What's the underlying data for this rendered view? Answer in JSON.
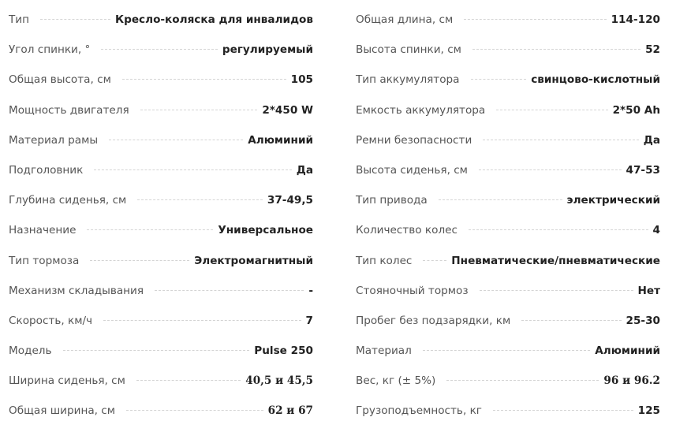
{
  "left": [
    {
      "label": "Тип",
      "value": "Кресло-коляска для инвалидов"
    },
    {
      "label": "Угол спинки, °",
      "value": "регулируемый"
    },
    {
      "label": "Общая высота, см",
      "value": "105"
    },
    {
      "label": "Мощность двигателя",
      "value": "2*450 W"
    },
    {
      "label": "Материал рамы",
      "value": "Алюминий"
    },
    {
      "label": "Подголовник",
      "value": "Да"
    },
    {
      "label": "Глубина сиденья, см",
      "value": "37-49,5"
    },
    {
      "label": "Назначение",
      "value": "Универсальное"
    },
    {
      "label": "Тип тормоза",
      "value": "Электромагнитный"
    },
    {
      "label": "Механизм складывания",
      "value": "-"
    },
    {
      "label": "Скорость, км/ч",
      "value": "7"
    },
    {
      "label": "Модель",
      "value": "Pulse 250"
    },
    {
      "label": "Ширина сиденья, см",
      "value": "40,5 и  45,5"
    },
    {
      "label": "Общая ширина, см",
      "value": "62 и  67"
    }
  ],
  "right": [
    {
      "label": "Общая длина, см",
      "value": "114-120"
    },
    {
      "label": "Высота спинки, см",
      "value": "52"
    },
    {
      "label": "Тип аккумулятора",
      "value": "свинцово-кислотный"
    },
    {
      "label": "Емкость аккумулятора",
      "value": "2*50 Ah"
    },
    {
      "label": "Ремни безопасности",
      "value": "Да"
    },
    {
      "label": "Высота сиденья, см",
      "value": "47-53"
    },
    {
      "label": "Тип привода",
      "value": "электрический"
    },
    {
      "label": "Количество колес",
      "value": "4"
    },
    {
      "label": "Тип колес",
      "value": "Пневматические/пневматические"
    },
    {
      "label": "Стояночный тормоз",
      "value": "Нет"
    },
    {
      "label": "Пробег без подзарядки, км",
      "value": "25-30"
    },
    {
      "label": "Материал",
      "value": "Алюминий"
    },
    {
      "label": "Вес, кг (± 5%)",
      "value": "96 и  96.2"
    },
    {
      "label": "Грузоподъемность, кг",
      "value": "125"
    }
  ]
}
